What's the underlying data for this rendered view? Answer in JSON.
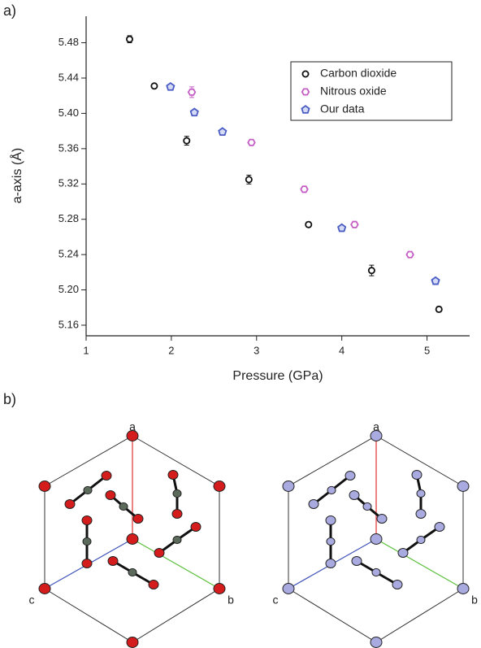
{
  "panel_labels": [
    "a)",
    "b)"
  ],
  "chart_data": {
    "type": "scatter",
    "x_label": "Pressure (GPa)",
    "y_label": "a-axis (Å)",
    "xlim": [
      1,
      5.5
    ],
    "xticks": [
      1,
      2,
      3,
      4,
      5
    ],
    "ylim": [
      5.148,
      5.51
    ],
    "yticks": [
      5.16,
      {
        "value": 5.2,
        "label": "5.20"
      },
      5.24,
      5.28,
      5.32,
      5.36,
      {
        "value": 5.4,
        "label": "5.40"
      },
      5.44,
      5.48
    ],
    "legend": "upper right",
    "series": [
      {
        "name": "Carbon dioxide",
        "color": "#111111",
        "marker": "circle",
        "x": [
          1.51,
          1.8,
          2.18,
          2.91,
          3.61,
          4.35,
          5.14
        ],
        "values": [
          5.484,
          5.431,
          5.369,
          5.325,
          5.274,
          5.222,
          5.178
        ],
        "errors": [
          0.004,
          0.002,
          0.005,
          0.005,
          0.003,
          0.006,
          0.003
        ]
      },
      {
        "name": "Nitrous oxide",
        "color": "#c45ec4",
        "marker": "hexagon",
        "x": [
          2.24,
          2.94,
          3.56,
          4.15,
          4.8
        ],
        "values": [
          5.424,
          5.367,
          5.314,
          5.274,
          5.24
        ],
        "errors": [
          0.006,
          0.002,
          0.002,
          0.003,
          0.002
        ]
      },
      {
        "name": "Our data",
        "color": "#4a5cc4",
        "marker": "pentagon",
        "x": [
          1.99,
          2.27,
          2.6,
          4.0,
          5.1
        ],
        "values": [
          5.43,
          5.401,
          5.379,
          5.27,
          5.21
        ],
        "errors": [
          0.001,
          0.001,
          0.001,
          0.001,
          0.001
        ]
      }
    ]
  },
  "structures": [
    {
      "labels": [
        "a",
        "c",
        "b"
      ]
    },
    {
      "labels": [
        "a",
        "c",
        "b"
      ]
    }
  ]
}
